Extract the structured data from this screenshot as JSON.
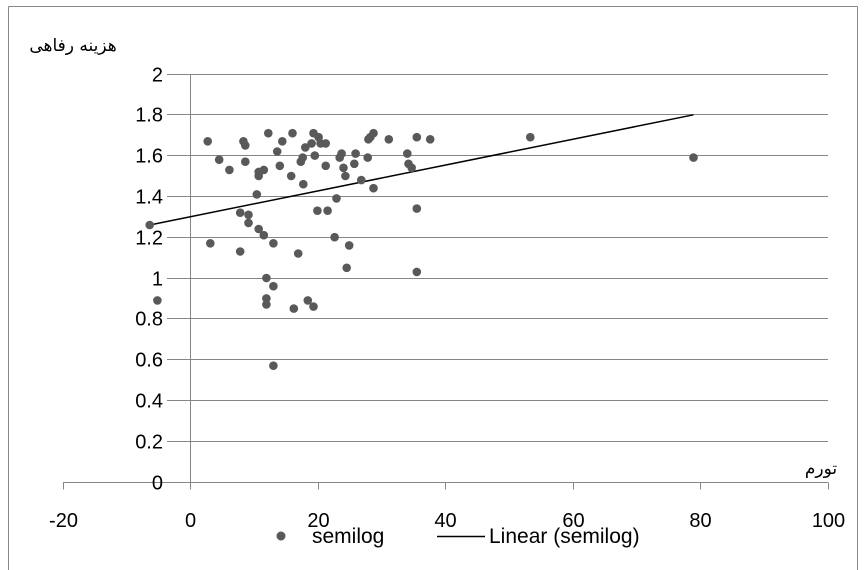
{
  "chart_data": {
    "type": "scatter",
    "xlabel": "تورم",
    "ylabel": "هزینه رفاهی",
    "xlim": [
      -20,
      100
    ],
    "ylim": [
      0,
      2
    ],
    "x_ticks": [
      -20,
      0,
      20,
      40,
      60,
      80,
      100
    ],
    "y_ticks": [
      0,
      0.2,
      0.4,
      0.6,
      0.8,
      1,
      1.2,
      1.4,
      1.6,
      1.8,
      2
    ],
    "grid": true,
    "legend": "bottom",
    "series": [
      {
        "name": "semilog",
        "type": "scatter",
        "color": "#595959",
        "points": [
          [
            -6.4,
            1.26
          ],
          [
            -5.2,
            0.89
          ],
          [
            2.7,
            1.67
          ],
          [
            3.1,
            1.17
          ],
          [
            4.5,
            1.58
          ],
          [
            6.1,
            1.53
          ],
          [
            7.8,
            1.13
          ],
          [
            7.8,
            1.32
          ],
          [
            8.3,
            1.67
          ],
          [
            8.6,
            1.65
          ],
          [
            8.6,
            1.57
          ],
          [
            9.1,
            1.31
          ],
          [
            9.1,
            1.27
          ],
          [
            10.4,
            1.41
          ],
          [
            10.7,
            1.52
          ],
          [
            10.7,
            1.5
          ],
          [
            10.7,
            1.24
          ],
          [
            11.5,
            1.53
          ],
          [
            11.5,
            1.21
          ],
          [
            11.9,
            1.0
          ],
          [
            11.9,
            0.9
          ],
          [
            11.9,
            0.87
          ],
          [
            12.2,
            1.71
          ],
          [
            13.0,
            1.17
          ],
          [
            13.0,
            0.96
          ],
          [
            13.0,
            0.57
          ],
          [
            13.6,
            1.62
          ],
          [
            14.0,
            1.55
          ],
          [
            14.4,
            1.67
          ],
          [
            15.8,
            1.5
          ],
          [
            16.0,
            1.71
          ],
          [
            16.2,
            0.85
          ],
          [
            16.9,
            1.12
          ],
          [
            17.3,
            1.57
          ],
          [
            17.6,
            1.59
          ],
          [
            17.7,
            1.46
          ],
          [
            18.0,
            1.64
          ],
          [
            18.4,
            0.89
          ],
          [
            19.0,
            1.66
          ],
          [
            19.3,
            1.71
          ],
          [
            19.3,
            0.86
          ],
          [
            19.5,
            1.6
          ],
          [
            19.9,
            1.33
          ],
          [
            20.1,
            1.69
          ],
          [
            20.4,
            1.66
          ],
          [
            21.2,
            1.66
          ],
          [
            21.2,
            1.55
          ],
          [
            21.5,
            1.33
          ],
          [
            22.6,
            1.2
          ],
          [
            22.9,
            1.39
          ],
          [
            23.4,
            1.59
          ],
          [
            23.7,
            1.61
          ],
          [
            24.0,
            1.54
          ],
          [
            24.3,
            1.5
          ],
          [
            24.5,
            1.05
          ],
          [
            24.9,
            1.16
          ],
          [
            25.7,
            1.56
          ],
          [
            25.9,
            1.61
          ],
          [
            26.8,
            1.48
          ],
          [
            27.8,
            1.59
          ],
          [
            27.9,
            1.68
          ],
          [
            28.2,
            1.69
          ],
          [
            28.7,
            1.71
          ],
          [
            28.7,
            1.44
          ],
          [
            31.1,
            1.68
          ],
          [
            34.0,
            1.61
          ],
          [
            34.2,
            1.56
          ],
          [
            34.7,
            1.54
          ],
          [
            35.5,
            1.69
          ],
          [
            35.5,
            1.34
          ],
          [
            35.5,
            1.03
          ],
          [
            37.6,
            1.68
          ],
          [
            53.3,
            1.69
          ],
          [
            78.9,
            1.59
          ]
        ]
      },
      {
        "name": "Linear (semilog)",
        "type": "line",
        "color": "#000000",
        "points": [
          [
            -6.4,
            1.26
          ],
          [
            78.9,
            1.8
          ]
        ]
      }
    ]
  }
}
